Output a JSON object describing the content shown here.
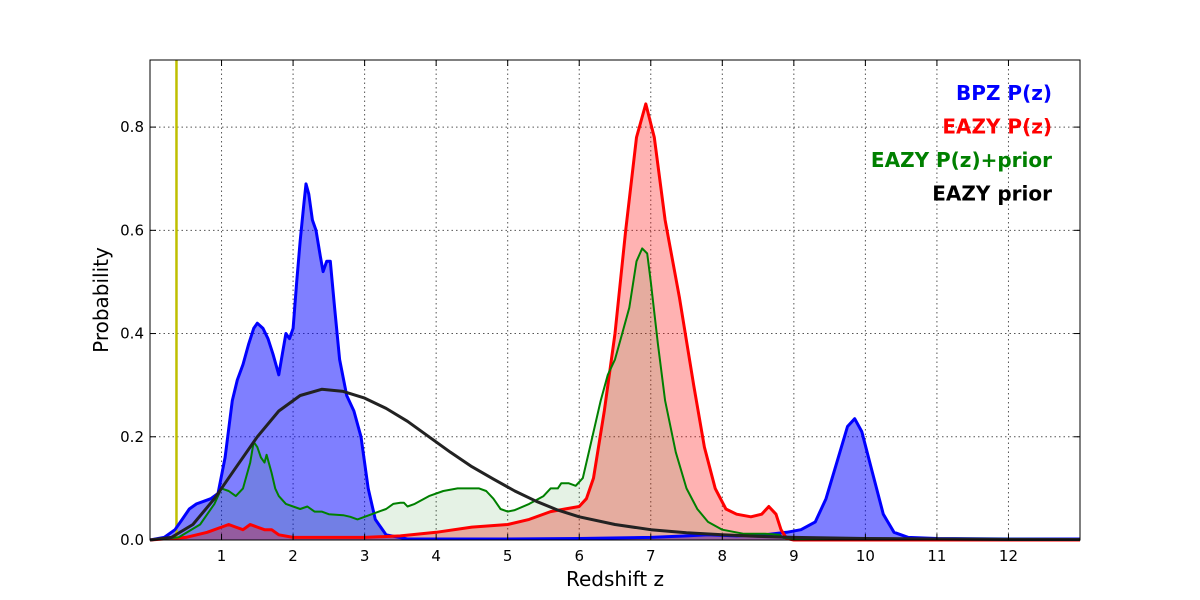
{
  "chart_data": {
    "type": "area",
    "title": "",
    "xlabel": "Redshift z",
    "ylabel": "Probability",
    "xlim": [
      0,
      13
    ],
    "ylim": [
      0,
      0.93
    ],
    "x_ticks": [
      1,
      2,
      3,
      4,
      5,
      6,
      7,
      8,
      9,
      10,
      11,
      12
    ],
    "y_ticks": [
      0.0,
      0.2,
      0.4,
      0.6,
      0.8
    ],
    "grid": true,
    "legend_position": "top-right",
    "vertical_marker": {
      "x": 0.37,
      "color": "#bfbf00"
    },
    "series": [
      {
        "name": "BPZ P(z)",
        "color": "#0000ff",
        "fill": "#0000ff",
        "fill_opacity": 0.5,
        "line_width": 3,
        "points": [
          [
            0,
            0
          ],
          [
            0.2,
            0.005
          ],
          [
            0.35,
            0.02
          ],
          [
            0.45,
            0.04
          ],
          [
            0.55,
            0.06
          ],
          [
            0.65,
            0.07
          ],
          [
            0.75,
            0.075
          ],
          [
            0.85,
            0.08
          ],
          [
            0.95,
            0.09
          ],
          [
            1.05,
            0.16
          ],
          [
            1.15,
            0.27
          ],
          [
            1.22,
            0.31
          ],
          [
            1.3,
            0.34
          ],
          [
            1.38,
            0.38
          ],
          [
            1.45,
            0.41
          ],
          [
            1.5,
            0.42
          ],
          [
            1.58,
            0.41
          ],
          [
            1.65,
            0.39
          ],
          [
            1.72,
            0.36
          ],
          [
            1.8,
            0.32
          ],
          [
            1.85,
            0.36
          ],
          [
            1.9,
            0.4
          ],
          [
            1.95,
            0.39
          ],
          [
            2.0,
            0.41
          ],
          [
            2.05,
            0.5
          ],
          [
            2.1,
            0.58
          ],
          [
            2.15,
            0.65
          ],
          [
            2.18,
            0.69
          ],
          [
            2.22,
            0.67
          ],
          [
            2.27,
            0.62
          ],
          [
            2.32,
            0.6
          ],
          [
            2.38,
            0.55
          ],
          [
            2.42,
            0.52
          ],
          [
            2.47,
            0.54
          ],
          [
            2.52,
            0.54
          ],
          [
            2.58,
            0.45
          ],
          [
            2.65,
            0.35
          ],
          [
            2.75,
            0.28
          ],
          [
            2.85,
            0.25
          ],
          [
            2.95,
            0.2
          ],
          [
            3.05,
            0.1
          ],
          [
            3.15,
            0.04
          ],
          [
            3.3,
            0.01
          ],
          [
            3.6,
            0.002
          ],
          [
            5.0,
            0.002
          ],
          [
            6.0,
            0.003
          ],
          [
            7.0,
            0.005
          ],
          [
            7.5,
            0.008
          ],
          [
            7.8,
            0.01
          ],
          [
            8.2,
            0.008
          ],
          [
            8.6,
            0.01
          ],
          [
            8.9,
            0.015
          ],
          [
            9.1,
            0.02
          ],
          [
            9.3,
            0.035
          ],
          [
            9.45,
            0.08
          ],
          [
            9.6,
            0.15
          ],
          [
            9.75,
            0.22
          ],
          [
            9.85,
            0.235
          ],
          [
            9.95,
            0.21
          ],
          [
            10.1,
            0.13
          ],
          [
            10.25,
            0.05
          ],
          [
            10.4,
            0.015
          ],
          [
            10.6,
            0.005
          ],
          [
            11.0,
            0.003
          ],
          [
            12,
            0.002
          ],
          [
            13,
            0.002
          ]
        ]
      },
      {
        "name": "EAZY P(z)",
        "color": "#ff0000",
        "fill": "#ff0000",
        "fill_opacity": 0.3,
        "line_width": 3,
        "points": [
          [
            0,
            0
          ],
          [
            0.5,
            0.005
          ],
          [
            0.8,
            0.015
          ],
          [
            1.0,
            0.025
          ],
          [
            1.1,
            0.03
          ],
          [
            1.2,
            0.025
          ],
          [
            1.3,
            0.02
          ],
          [
            1.4,
            0.03
          ],
          [
            1.5,
            0.025
          ],
          [
            1.6,
            0.02
          ],
          [
            1.7,
            0.02
          ],
          [
            1.8,
            0.01
          ],
          [
            2.0,
            0.005
          ],
          [
            2.5,
            0.005
          ],
          [
            3.0,
            0.005
          ],
          [
            3.5,
            0.008
          ],
          [
            4.0,
            0.015
          ],
          [
            4.5,
            0.025
          ],
          [
            5.0,
            0.03
          ],
          [
            5.3,
            0.04
          ],
          [
            5.6,
            0.055
          ],
          [
            5.8,
            0.06
          ],
          [
            6.0,
            0.065
          ],
          [
            6.1,
            0.08
          ],
          [
            6.2,
            0.12
          ],
          [
            6.35,
            0.25
          ],
          [
            6.5,
            0.4
          ],
          [
            6.65,
            0.6
          ],
          [
            6.8,
            0.78
          ],
          [
            6.93,
            0.845
          ],
          [
            7.05,
            0.78
          ],
          [
            7.2,
            0.62
          ],
          [
            7.4,
            0.47
          ],
          [
            7.6,
            0.3
          ],
          [
            7.75,
            0.18
          ],
          [
            7.9,
            0.1
          ],
          [
            8.05,
            0.06
          ],
          [
            8.2,
            0.05
          ],
          [
            8.4,
            0.045
          ],
          [
            8.55,
            0.05
          ],
          [
            8.65,
            0.065
          ],
          [
            8.75,
            0.05
          ],
          [
            8.82,
            0.02
          ],
          [
            8.9,
            0.003
          ],
          [
            9.0,
            0
          ],
          [
            13,
            0
          ]
        ]
      },
      {
        "name": "EAZY P(z)+prior",
        "color": "#008000",
        "fill": "#008000",
        "fill_opacity": 0.1,
        "line_width": 2,
        "points": [
          [
            0,
            0
          ],
          [
            0.4,
            0.005
          ],
          [
            0.7,
            0.03
          ],
          [
            0.9,
            0.07
          ],
          [
            1.0,
            0.1
          ],
          [
            1.1,
            0.095
          ],
          [
            1.2,
            0.085
          ],
          [
            1.3,
            0.1
          ],
          [
            1.4,
            0.15
          ],
          [
            1.45,
            0.19
          ],
          [
            1.5,
            0.18
          ],
          [
            1.55,
            0.16
          ],
          [
            1.6,
            0.15
          ],
          [
            1.63,
            0.165
          ],
          [
            1.7,
            0.13
          ],
          [
            1.75,
            0.1
          ],
          [
            1.8,
            0.085
          ],
          [
            1.9,
            0.07
          ],
          [
            2.0,
            0.065
          ],
          [
            2.1,
            0.06
          ],
          [
            2.2,
            0.065
          ],
          [
            2.3,
            0.055
          ],
          [
            2.4,
            0.055
          ],
          [
            2.5,
            0.05
          ],
          [
            2.7,
            0.048
          ],
          [
            2.8,
            0.045
          ],
          [
            2.9,
            0.04
          ],
          [
            3.0,
            0.045
          ],
          [
            3.1,
            0.05
          ],
          [
            3.2,
            0.055
          ],
          [
            3.3,
            0.06
          ],
          [
            3.4,
            0.07
          ],
          [
            3.5,
            0.072
          ],
          [
            3.55,
            0.072
          ],
          [
            3.6,
            0.065
          ],
          [
            3.7,
            0.07
          ],
          [
            3.9,
            0.085
          ],
          [
            4.1,
            0.095
          ],
          [
            4.3,
            0.1
          ],
          [
            4.5,
            0.1
          ],
          [
            4.6,
            0.1
          ],
          [
            4.7,
            0.095
          ],
          [
            4.8,
            0.08
          ],
          [
            4.9,
            0.06
          ],
          [
            5.0,
            0.055
          ],
          [
            5.1,
            0.058
          ],
          [
            5.3,
            0.07
          ],
          [
            5.5,
            0.085
          ],
          [
            5.6,
            0.1
          ],
          [
            5.7,
            0.1
          ],
          [
            5.75,
            0.11
          ],
          [
            5.85,
            0.11
          ],
          [
            5.95,
            0.105
          ],
          [
            6.05,
            0.12
          ],
          [
            6.15,
            0.18
          ],
          [
            6.3,
            0.27
          ],
          [
            6.4,
            0.32
          ],
          [
            6.5,
            0.35
          ],
          [
            6.6,
            0.4
          ],
          [
            6.7,
            0.45
          ],
          [
            6.8,
            0.54
          ],
          [
            6.88,
            0.565
          ],
          [
            6.95,
            0.555
          ],
          [
            7.0,
            0.5
          ],
          [
            7.1,
            0.38
          ],
          [
            7.2,
            0.27
          ],
          [
            7.35,
            0.17
          ],
          [
            7.5,
            0.1
          ],
          [
            7.65,
            0.06
          ],
          [
            7.8,
            0.035
          ],
          [
            8.0,
            0.02
          ],
          [
            8.3,
            0.012
          ],
          [
            8.6,
            0.012
          ],
          [
            8.8,
            0.01
          ],
          [
            8.85,
            0.004
          ],
          [
            9.0,
            0.003
          ],
          [
            13,
            0.002
          ]
        ]
      },
      {
        "name": "EAZY prior",
        "color": "#222222",
        "fill": null,
        "fill_opacity": 0,
        "line_width": 3,
        "points": [
          [
            0,
            0
          ],
          [
            0.3,
            0.005
          ],
          [
            0.6,
            0.03
          ],
          [
            0.9,
            0.08
          ],
          [
            1.2,
            0.14
          ],
          [
            1.5,
            0.2
          ],
          [
            1.8,
            0.25
          ],
          [
            2.1,
            0.28
          ],
          [
            2.4,
            0.292
          ],
          [
            2.7,
            0.288
          ],
          [
            3.0,
            0.275
          ],
          [
            3.3,
            0.255
          ],
          [
            3.6,
            0.23
          ],
          [
            3.9,
            0.2
          ],
          [
            4.2,
            0.17
          ],
          [
            4.5,
            0.142
          ],
          [
            4.8,
            0.118
          ],
          [
            5.1,
            0.095
          ],
          [
            5.4,
            0.075
          ],
          [
            5.7,
            0.058
          ],
          [
            6.0,
            0.045
          ],
          [
            6.5,
            0.03
          ],
          [
            7.0,
            0.02
          ],
          [
            7.5,
            0.014
          ],
          [
            8.0,
            0.01
          ],
          [
            8.5,
            0.007
          ],
          [
            9.0,
            0.005
          ],
          [
            10,
            0.003
          ],
          [
            11,
            0.002
          ],
          [
            12,
            0.001
          ],
          [
            13,
            0.001
          ]
        ]
      }
    ]
  }
}
